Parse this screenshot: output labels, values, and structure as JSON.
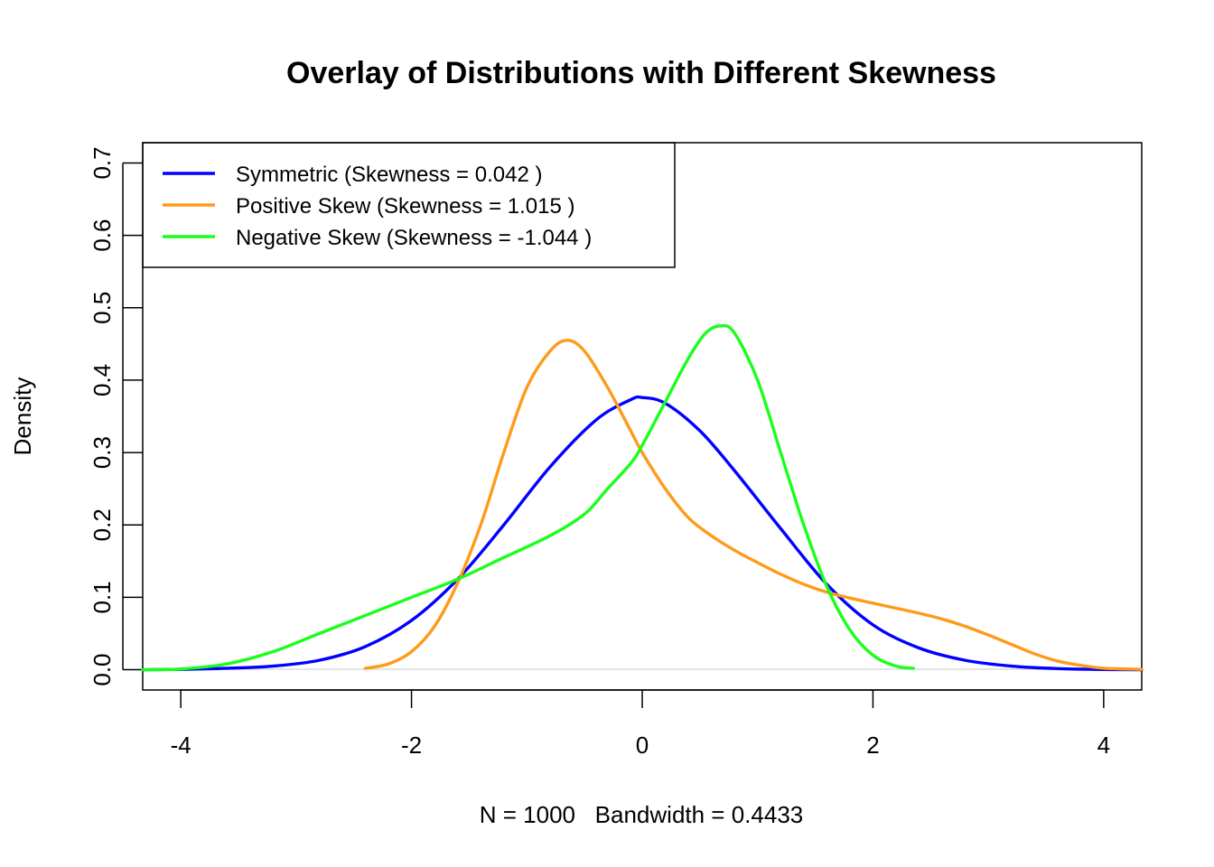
{
  "chart_data": {
    "type": "line",
    "title": "Overlay of Distributions with Different Skewness",
    "xlabel": "N = 1000   Bandwidth = 0.4433",
    "ylabel": "Density",
    "xlim": [
      -4.33,
      4.33
    ],
    "ylim": [
      -0.028,
      0.728
    ],
    "x_ticks": [
      -4,
      -2,
      0,
      2,
      4
    ],
    "x_tick_labels": [
      "-4",
      "-2",
      "0",
      "2",
      "4"
    ],
    "y_ticks": [
      0.0,
      0.1,
      0.2,
      0.3,
      0.4,
      0.5,
      0.6,
      0.7
    ],
    "y_tick_labels": [
      "0.0",
      "0.1",
      "0.2",
      "0.3",
      "0.4",
      "0.5",
      "0.6",
      "0.7"
    ],
    "grid": false,
    "legend_position": "top-left",
    "series": [
      {
        "name": "Symmetric (Skewness = 0.042 )",
        "color": "#0000ff",
        "x": [
          -4.33,
          -4.0,
          -3.6,
          -3.2,
          -2.8,
          -2.4,
          -2.0,
          -1.6,
          -1.2,
          -0.8,
          -0.4,
          -0.1,
          0.0,
          0.2,
          0.5,
          0.8,
          1.2,
          1.6,
          2.0,
          2.4,
          2.8,
          3.2,
          3.6,
          4.0,
          4.33
        ],
        "y": [
          0.0,
          0.0005,
          0.002,
          0.005,
          0.013,
          0.032,
          0.068,
          0.125,
          0.2,
          0.28,
          0.345,
          0.373,
          0.376,
          0.368,
          0.33,
          0.275,
          0.195,
          0.118,
          0.062,
          0.03,
          0.013,
          0.005,
          0.0015,
          0.0003,
          0.0
        ]
      },
      {
        "name": "Positive Skew (Skewness = 1.015 )",
        "color": "#ff9a1a",
        "x": [
          -2.4,
          -2.2,
          -2.0,
          -1.8,
          -1.6,
          -1.4,
          -1.2,
          -1.0,
          -0.8,
          -0.65,
          -0.5,
          -0.3,
          -0.1,
          0.0,
          0.2,
          0.4,
          0.6,
          0.8,
          1.0,
          1.2,
          1.4,
          1.6,
          1.8,
          2.0,
          2.2,
          2.4,
          2.6,
          2.8,
          3.0,
          3.2,
          3.4,
          3.6,
          3.8,
          4.0,
          4.2,
          4.33
        ],
        "y": [
          0.002,
          0.008,
          0.025,
          0.06,
          0.12,
          0.2,
          0.3,
          0.39,
          0.44,
          0.455,
          0.44,
          0.39,
          0.33,
          0.3,
          0.25,
          0.21,
          0.185,
          0.165,
          0.148,
          0.132,
          0.118,
          0.107,
          0.099,
          0.092,
          0.085,
          0.078,
          0.07,
          0.06,
          0.048,
          0.035,
          0.022,
          0.012,
          0.006,
          0.002,
          0.001,
          0.0005
        ]
      },
      {
        "name": "Negative Skew (Skewness = -1.044 )",
        "color": "#1aff1a",
        "x": [
          -4.33,
          -4.0,
          -3.6,
          -3.2,
          -2.8,
          -2.4,
          -2.0,
          -1.6,
          -1.2,
          -0.8,
          -0.5,
          -0.3,
          -0.1,
          0.0,
          0.2,
          0.4,
          0.55,
          0.68,
          0.8,
          1.0,
          1.2,
          1.4,
          1.6,
          1.8,
          2.0,
          2.2,
          2.35
        ],
        "y": [
          0.0,
          0.001,
          0.008,
          0.025,
          0.05,
          0.075,
          0.1,
          0.125,
          0.155,
          0.185,
          0.215,
          0.25,
          0.285,
          0.31,
          0.37,
          0.43,
          0.465,
          0.475,
          0.465,
          0.4,
          0.3,
          0.2,
          0.115,
          0.055,
          0.02,
          0.005,
          0.002
        ]
      }
    ]
  }
}
